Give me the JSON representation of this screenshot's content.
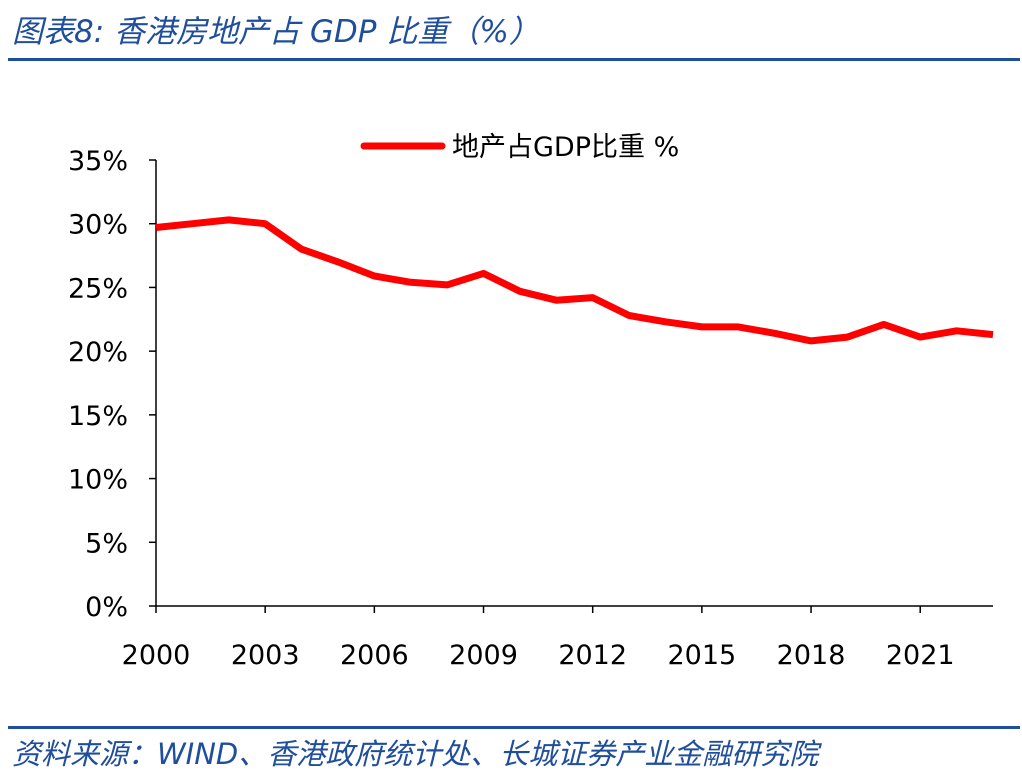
{
  "figure": {
    "title": "图表8:  香港房地产占 GDP 比重（%）",
    "source": "资料来源：WIND、香港政府统计处、长城证券产业金融研究院"
  },
  "colors": {
    "accent": "#1f4e9c",
    "series": "#ff0000"
  },
  "chart_data": {
    "type": "line",
    "title": "",
    "xlabel": "",
    "ylabel": "",
    "ylim": [
      0,
      35
    ],
    "xlim": [
      2000,
      2023
    ],
    "yticks": [
      0,
      5,
      10,
      15,
      20,
      25,
      30,
      35
    ],
    "ytick_labels": [
      "0%",
      "5%",
      "10%",
      "15%",
      "20%",
      "25%",
      "30%",
      "35%"
    ],
    "xticks": [
      2000,
      2003,
      2006,
      2009,
      2012,
      2015,
      2018,
      2021
    ],
    "xtick_labels": [
      "2000",
      "2003",
      "2006",
      "2009",
      "2012",
      "2015",
      "2018",
      "2021"
    ],
    "grid": false,
    "legend": "top-center",
    "x": [
      2000,
      2001,
      2002,
      2003,
      2004,
      2005,
      2006,
      2007,
      2008,
      2009,
      2010,
      2011,
      2012,
      2013,
      2014,
      2015,
      2016,
      2017,
      2018,
      2019,
      2020,
      2021,
      2022,
      2023
    ],
    "series": [
      {
        "name": "地产占GDP比重 %",
        "values": [
          29.7,
          30.0,
          30.3,
          30.0,
          28.0,
          27.0,
          25.9,
          25.4,
          25.2,
          26.1,
          24.7,
          24.0,
          24.2,
          22.8,
          22.3,
          21.9,
          21.9,
          21.4,
          20.8,
          21.1,
          22.1,
          21.1,
          21.6,
          21.3
        ]
      }
    ]
  }
}
